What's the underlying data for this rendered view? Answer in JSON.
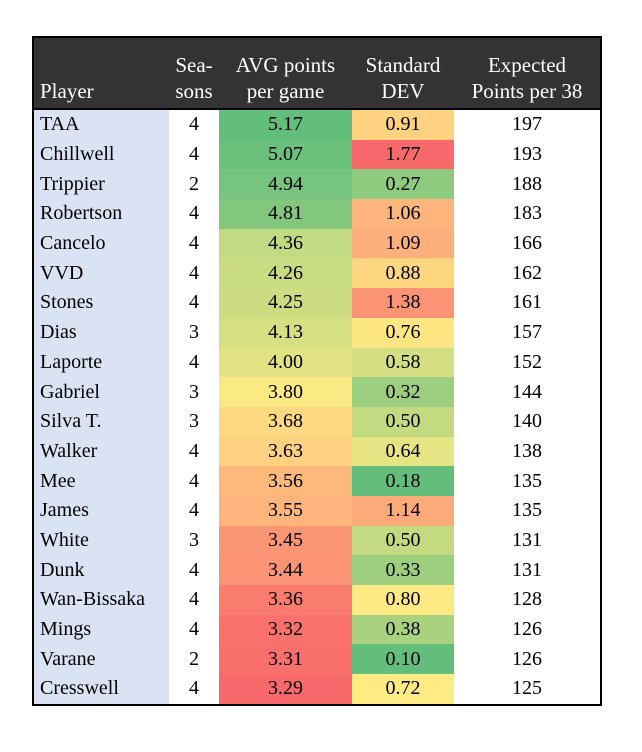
{
  "headers": {
    "player": "Player",
    "seasons": "Sea-\nsons",
    "avg": "AVG points\nper game",
    "std": "Standard\nDEV",
    "expected": "Expected\nPoints per 38"
  },
  "rows": [
    {
      "player": "TAA",
      "seasons": "4",
      "avg": "5.17",
      "std": "0.91",
      "expected": "197",
      "avg_color": "#63be7b",
      "std_color": "#fed280"
    },
    {
      "player": "Chillwell",
      "seasons": "4",
      "avg": "5.07",
      "std": "1.77",
      "expected": "193",
      "avg_color": "#6bc17c",
      "std_color": "#f8696b"
    },
    {
      "player": "Trippier",
      "seasons": "2",
      "avg": "4.94",
      "std": "0.27",
      "expected": "188",
      "avg_color": "#76c47d",
      "std_color": "#8fcb7e"
    },
    {
      "player": "Robertson",
      "seasons": "4",
      "avg": "4.81",
      "std": "1.06",
      "expected": "183",
      "avg_color": "#82c77d",
      "std_color": "#fdb57b"
    },
    {
      "player": "Cancelo",
      "seasons": "4",
      "avg": "4.36",
      "std": "1.09",
      "expected": "166",
      "avg_color": "#c2da81",
      "std_color": "#fdb07b"
    },
    {
      "player": "VVD",
      "seasons": "4",
      "avg": "4.26",
      "std": "0.88",
      "expected": "162",
      "avg_color": "#c9dc81",
      "std_color": "#fed680"
    },
    {
      "player": "Stones",
      "seasons": "4",
      "avg": "4.25",
      "std": "1.38",
      "expected": "161",
      "avg_color": "#cbdc81",
      "std_color": "#fb9474"
    },
    {
      "player": "Dias",
      "seasons": "3",
      "avg": "4.13",
      "std": "0.76",
      "expected": "157",
      "avg_color": "#d6df82",
      "std_color": "#fee683"
    },
    {
      "player": "Laporte",
      "seasons": "4",
      "avg": "4.00",
      "std": "0.58",
      "expected": "152",
      "avg_color": "#e2e383",
      "std_color": "#d3df82"
    },
    {
      "player": "Gabriel",
      "seasons": "3",
      "avg": "3.80",
      "std": "0.32",
      "expected": "144",
      "avg_color": "#fbea84",
      "std_color": "#9cce7f"
    },
    {
      "player": "Silva T.",
      "seasons": "3",
      "avg": "3.68",
      "std": "0.50",
      "expected": "140",
      "avg_color": "#fed981",
      "std_color": "#c4da81"
    },
    {
      "player": "Walker",
      "seasons": "4",
      "avg": "3.63",
      "std": "0.64",
      "expected": "138",
      "avg_color": "#fdd17f",
      "std_color": "#e7e483"
    },
    {
      "player": "Mee",
      "seasons": "4",
      "avg": "3.56",
      "std": "0.18",
      "expected": "135",
      "avg_color": "#fdb87c",
      "std_color": "#63be7b"
    },
    {
      "player": "James",
      "seasons": "4",
      "avg": "3.55",
      "std": "1.14",
      "expected": "135",
      "avg_color": "#fdb57b",
      "std_color": "#fcaa7a"
    },
    {
      "player": "White",
      "seasons": "3",
      "avg": "3.45",
      "std": "0.50",
      "expected": "131",
      "avg_color": "#fb9674",
      "std_color": "#c4da81"
    },
    {
      "player": "Dunk",
      "seasons": "4",
      "avg": "3.44",
      "std": "0.33",
      "expected": "131",
      "avg_color": "#fb9474",
      "std_color": "#9ecf7f"
    },
    {
      "player": "Wan-Bissaka",
      "seasons": "4",
      "avg": "3.36",
      "std": "0.80",
      "expected": "128",
      "avg_color": "#f97c6e",
      "std_color": "#feea84"
    },
    {
      "player": "Mings",
      "seasons": "4",
      "avg": "3.32",
      "std": "0.38",
      "expected": "126",
      "avg_color": "#f8716c",
      "std_color": "#a9d27f"
    },
    {
      "player": "Varane",
      "seasons": "2",
      "avg": "3.31",
      "std": "0.10",
      "expected": "126",
      "avg_color": "#f86f6c",
      "std_color": "#63be7b"
    },
    {
      "player": "Cresswell",
      "seasons": "4",
      "avg": "3.29",
      "std": "0.72",
      "expected": "125",
      "avg_color": "#f8696b",
      "std_color": "#feeb84"
    }
  ]
}
